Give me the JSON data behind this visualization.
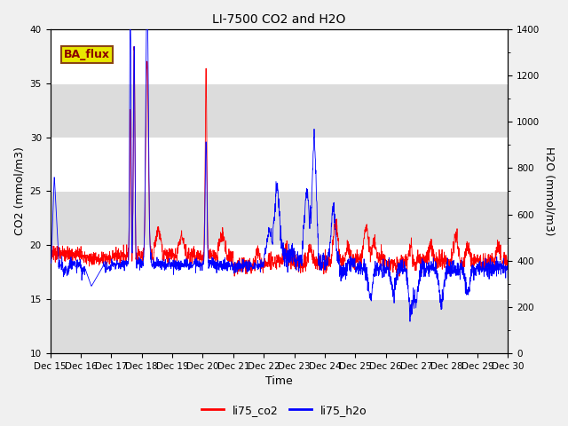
{
  "title": "LI-7500 CO2 and H2O",
  "xlabel": "Time",
  "ylabel_left": "CO2 (mmol/m3)",
  "ylabel_right": "H2O (mmol/m3)",
  "ylim_left": [
    10,
    40
  ],
  "ylim_right": [
    0,
    1400
  ],
  "yticks_left": [
    10,
    15,
    20,
    25,
    30,
    35,
    40
  ],
  "yticks_right": [
    0,
    200,
    400,
    600,
    800,
    1000,
    1200,
    1400
  ],
  "xticklabels": [
    "Dec 15",
    "Dec 16",
    "Dec 17",
    "Dec 18",
    "Dec 19",
    "Dec 20",
    "Dec 21",
    "Dec 22",
    "Dec 23",
    "Dec 24",
    "Dec 25",
    "Dec 26",
    "Dec 27",
    "Dec 28",
    "Dec 29",
    "Dec 30"
  ],
  "legend_labels": [
    "li75_co2",
    "li75_h2o"
  ],
  "co2_color": "red",
  "h2o_color": "blue",
  "fig_bg": "#f0f0f0",
  "plot_bg": "#ffffff",
  "band_color": "#dcdcdc",
  "annotation_text": "BA_flux",
  "annotation_fg": "#8B0000",
  "annotation_bg": "#e8e800",
  "annotation_border": "#8B4513",
  "title_fontsize": 10,
  "axis_fontsize": 9,
  "tick_fontsize": 7.5,
  "legend_fontsize": 9
}
